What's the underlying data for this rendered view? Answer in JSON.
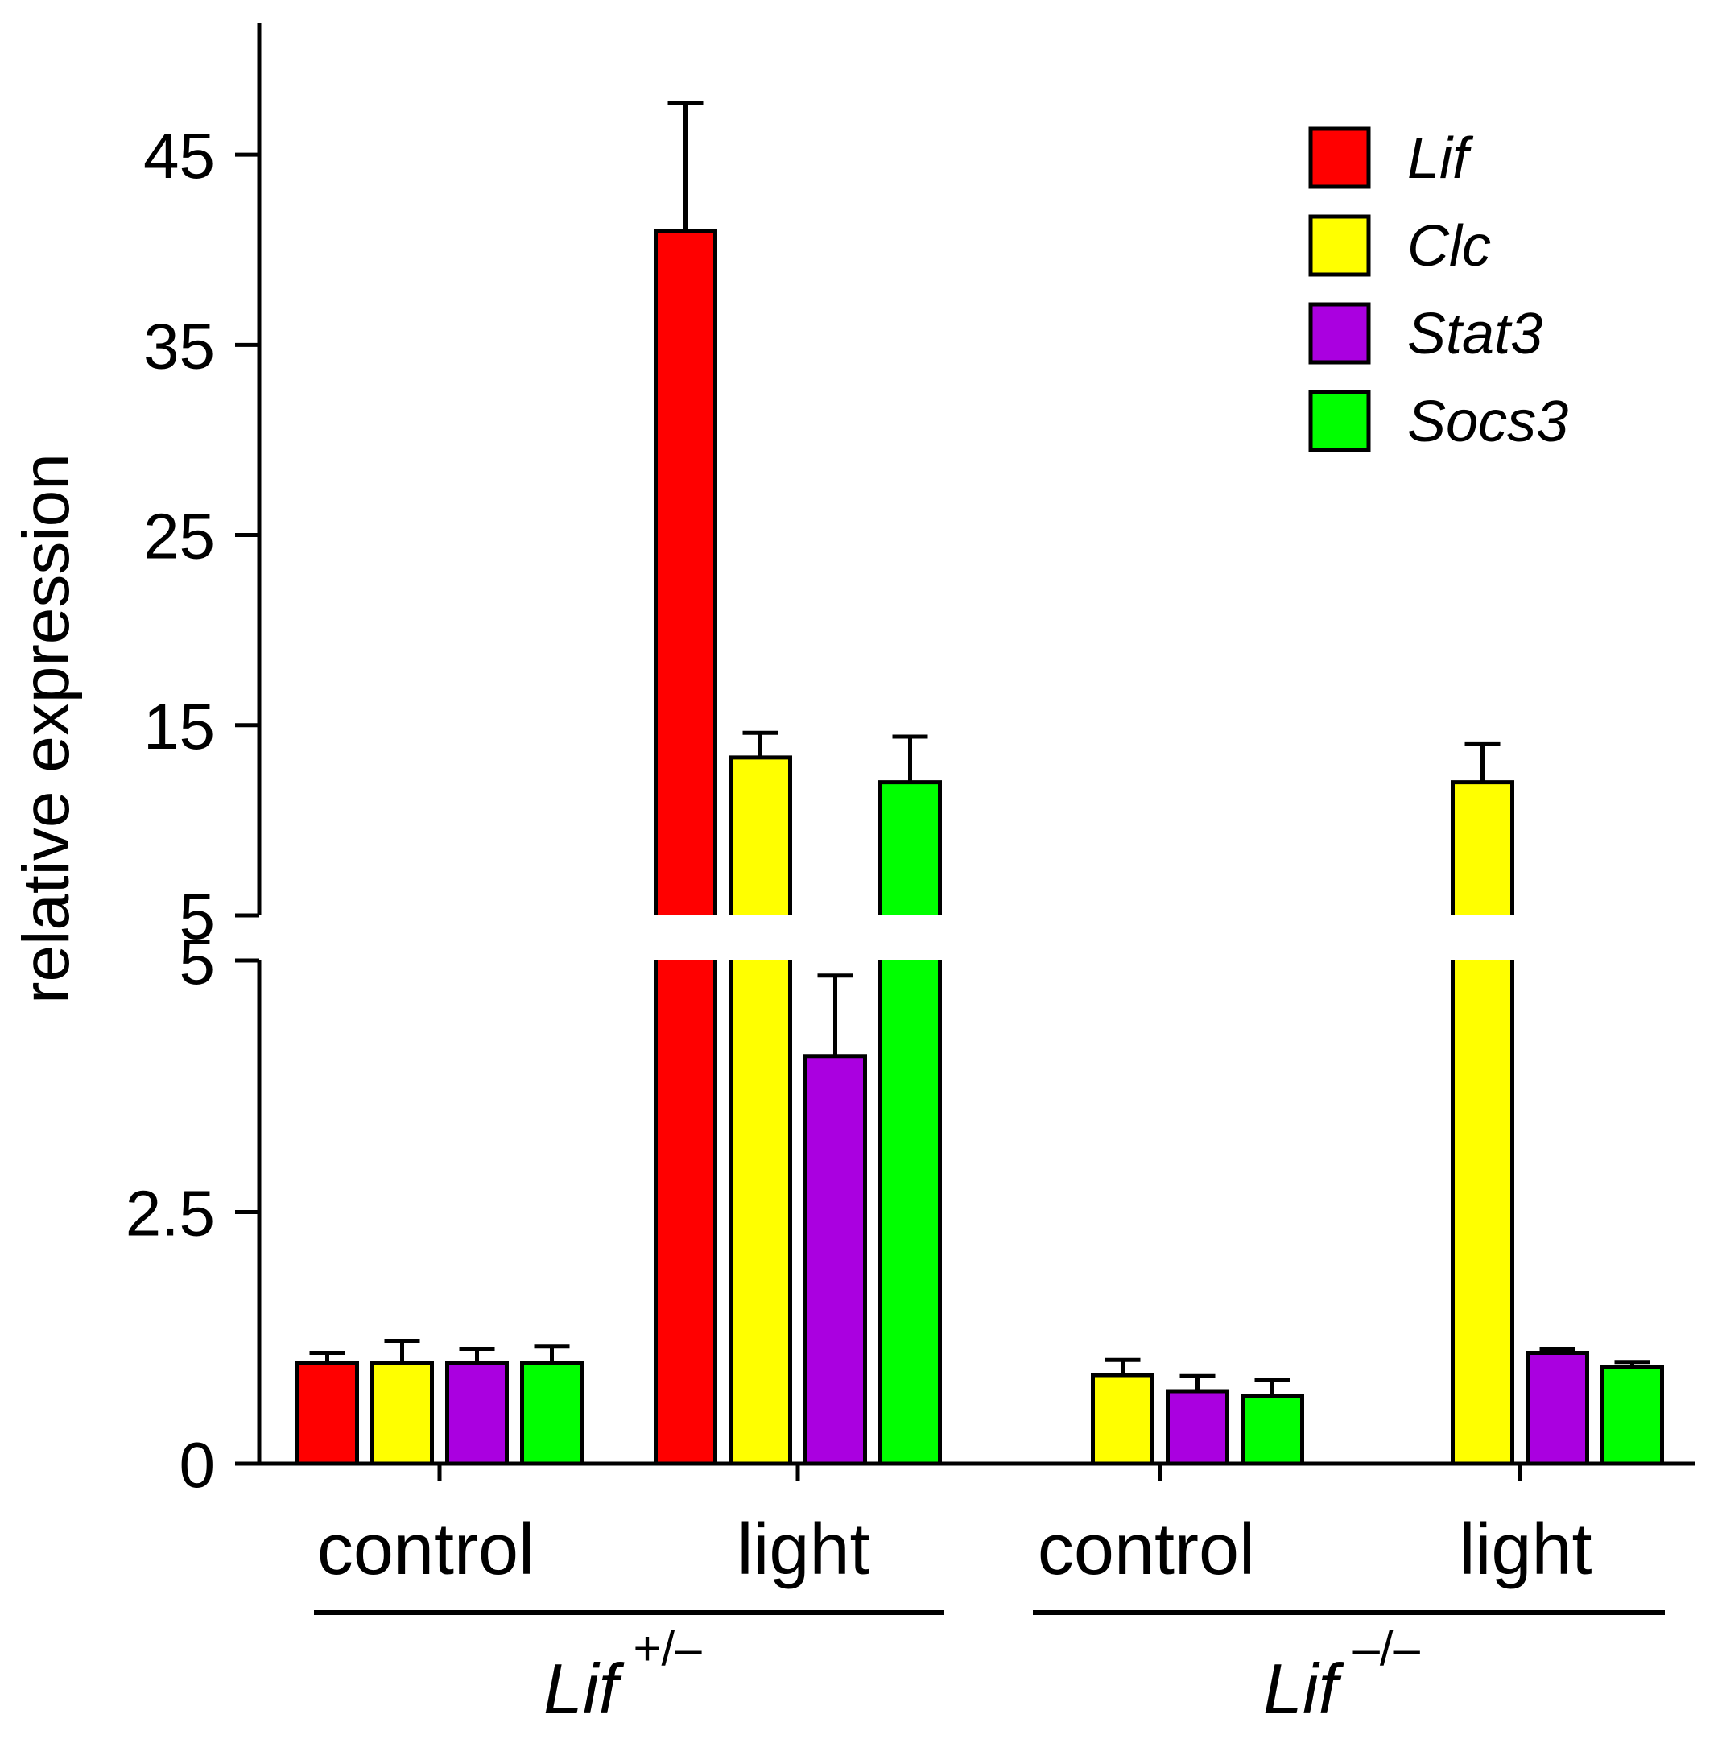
{
  "chart_data": {
    "type": "bar",
    "ylabel": "relative expression",
    "y_axis_break": true,
    "lower_segment": {
      "ylim": [
        0,
        5
      ],
      "ticks": [
        "0",
        "2.5",
        "5"
      ]
    },
    "upper_segment": {
      "ylim": [
        5,
        50
      ],
      "ticks": [
        "5",
        "15",
        "25",
        "35",
        "45"
      ]
    },
    "categories": [
      "control",
      "light",
      "control",
      "light"
    ],
    "groups": [
      {
        "main": "Lif",
        "sup": "+/–"
      },
      {
        "main": "Lif",
        "sup": "–/–"
      }
    ],
    "series": [
      {
        "name": "Lif",
        "color": "#ff0000",
        "values": [
          1.0,
          41.0,
          null,
          null
        ],
        "errors": [
          0.1,
          6.7,
          null,
          null
        ]
      },
      {
        "name": "Clc",
        "color": "#ffff00",
        "values": [
          1.0,
          13.3,
          0.88,
          12.0
        ],
        "errors": [
          0.22,
          1.3,
          0.15,
          2.0
        ]
      },
      {
        "name": "Stat3",
        "color": "#aa00e0",
        "values": [
          1.0,
          4.05,
          0.72,
          1.1
        ],
        "errors": [
          0.14,
          0.8,
          0.15,
          0.04
        ]
      },
      {
        "name": "Socs3",
        "color": "#00ff00",
        "values": [
          1.0,
          12.0,
          0.67,
          0.96
        ],
        "errors": [
          0.17,
          2.4,
          0.16,
          0.05
        ]
      }
    ],
    "legend_position": "top-right",
    "grid": false
  }
}
